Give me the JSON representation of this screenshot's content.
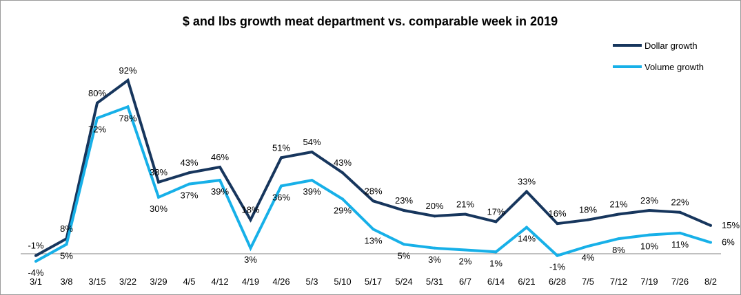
{
  "chart_data": {
    "type": "line",
    "title": "$ and lbs growth meat department vs. comparable week in 2019",
    "xlabel": "",
    "ylabel": "",
    "categories": [
      "3/1",
      "3/8",
      "3/15",
      "3/22",
      "3/29",
      "4/5",
      "4/12",
      "4/19",
      "4/26",
      "5/3",
      "5/10",
      "5/17",
      "5/24",
      "5/31",
      "6/7",
      "6/14",
      "6/21",
      "6/28",
      "7/5",
      "7/12",
      "7/19",
      "7/26",
      "8/2"
    ],
    "series": [
      {
        "name": "Dollar growth",
        "color": "#17365d",
        "values": [
          -1,
          8,
          80,
          92,
          38,
          43,
          46,
          18,
          51,
          54,
          43,
          28,
          23,
          20,
          21,
          17,
          33,
          16,
          18,
          21,
          23,
          22,
          15
        ],
        "labels": [
          "-1%",
          "8%",
          "80%",
          "92%",
          "38%",
          "43%",
          "46%",
          "18%",
          "51%",
          "54%",
          "43%",
          "28%",
          "23%",
          "20%",
          "21%",
          "17%",
          "33%",
          "16%",
          "18%",
          "21%",
          "23%",
          "22%",
          "15%"
        ]
      },
      {
        "name": "Volume growth",
        "color": "#17b0e8",
        "values": [
          -4,
          5,
          72,
          78,
          30,
          37,
          39,
          3,
          36,
          39,
          29,
          13,
          5,
          3,
          2,
          1,
          14,
          -1,
          4,
          8,
          10,
          11,
          6
        ],
        "labels": [
          "-4%",
          "5%",
          "72%",
          "78%",
          "30%",
          "37%",
          "39%",
          "3%",
          "36%",
          "39%",
          "29%",
          "13%",
          "5%",
          "3%",
          "2%",
          "1%",
          "14%",
          "-1%",
          "4%",
          "8%",
          "10%",
          "11%",
          "6%"
        ]
      }
    ],
    "ylim": [
      -10,
      95
    ],
    "grid": false,
    "legend_position": "top-right"
  }
}
